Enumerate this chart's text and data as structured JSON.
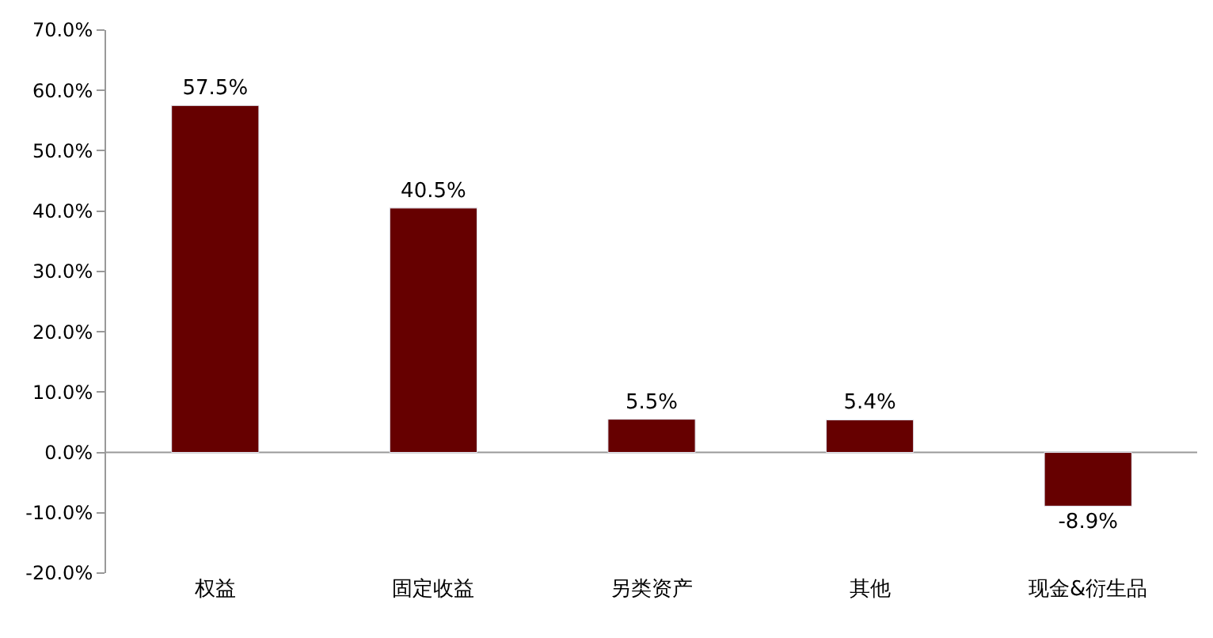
{
  "chart_data": {
    "type": "bar",
    "categories": [
      "权益",
      "固定收益",
      "另类资产",
      "其他",
      "现金&衍生品"
    ],
    "series": [
      {
        "color": "#660000",
        "values": [
          57.5,
          40.5,
          5.5,
          5.4,
          -8.9
        ],
        "value_labels": [
          "57.5%",
          "40.5%",
          "5.5%",
          "5.4%",
          "-8.9%"
        ]
      }
    ],
    "ylim": [
      -20,
      70
    ],
    "yticks": [
      {
        "value": -20,
        "label": "-20.0%"
      },
      {
        "value": -10,
        "label": "-10.0%"
      },
      {
        "value": 0,
        "label": "0.0%"
      },
      {
        "value": 10,
        "label": "10.0%"
      },
      {
        "value": 20,
        "label": "20.0%"
      },
      {
        "value": 30,
        "label": "30.0%"
      },
      {
        "value": 40,
        "label": "40.0%"
      },
      {
        "value": 50,
        "label": "50.0%"
      },
      {
        "value": 60,
        "label": "60.0%"
      },
      {
        "value": 70,
        "label": "70.0%"
      }
    ],
    "ref_lines": [
      {
        "axis": "y",
        "value": 0,
        "color": "#999999"
      }
    ],
    "grid": false,
    "legend": false
  }
}
